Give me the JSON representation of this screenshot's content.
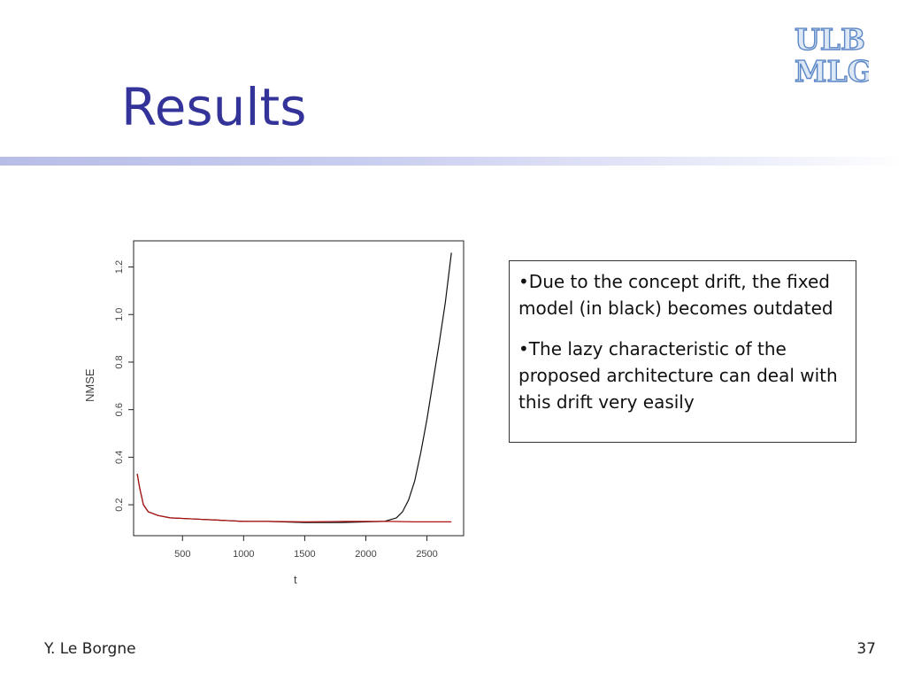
{
  "slide": {
    "title": "Results",
    "author": "Y. Le Borgne",
    "page_number": "37",
    "logo": {
      "line1": "ULB",
      "line2": "MLG",
      "icon": "ulb-mlg-logo"
    }
  },
  "bullets": [
    "•Due to the concept drift, the fixed model (in black) becomes outdated",
    "•The lazy characteristic of the proposed architecture can deal with this drift very easily"
  ],
  "chart_data": {
    "type": "line",
    "xlabel": "t",
    "ylabel": "NMSE",
    "xlim": [
      100,
      2800
    ],
    "ylim": [
      0.07,
      1.31
    ],
    "xticks": [
      500,
      1000,
      1500,
      2000,
      2500
    ],
    "xtick_labels": [
      "500",
      "1000",
      "1500",
      "2000",
      "2500"
    ],
    "yticks": [
      0.2,
      0.4,
      0.6,
      0.8,
      1.0,
      1.2
    ],
    "ytick_labels": [
      "0.2",
      "0.4",
      "0.6",
      "0.8",
      "1.0",
      "1.2"
    ],
    "grid": false,
    "series": [
      {
        "color": "#111111",
        "x": [
          130,
          150,
          180,
          220,
          300,
          400,
          600,
          800,
          1000,
          1200,
          1500,
          1800,
          2000,
          2150,
          2250,
          2300,
          2350,
          2400,
          2450,
          2500,
          2550,
          2600,
          2650,
          2700
        ],
        "y": [
          0.33,
          0.27,
          0.2,
          0.17,
          0.155,
          0.145,
          0.14,
          0.135,
          0.13,
          0.13,
          0.125,
          0.125,
          0.128,
          0.13,
          0.145,
          0.17,
          0.22,
          0.3,
          0.42,
          0.56,
          0.72,
          0.88,
          1.05,
          1.26
        ]
      },
      {
        "color": "#b01010",
        "x": [
          130,
          150,
          180,
          220,
          300,
          400,
          600,
          800,
          1000,
          1200,
          1500,
          1800,
          2000,
          2200,
          2400,
          2600,
          2700
        ],
        "y": [
          0.33,
          0.27,
          0.2,
          0.17,
          0.155,
          0.145,
          0.14,
          0.135,
          0.13,
          0.13,
          0.128,
          0.13,
          0.13,
          0.13,
          0.128,
          0.128,
          0.128
        ]
      }
    ]
  }
}
